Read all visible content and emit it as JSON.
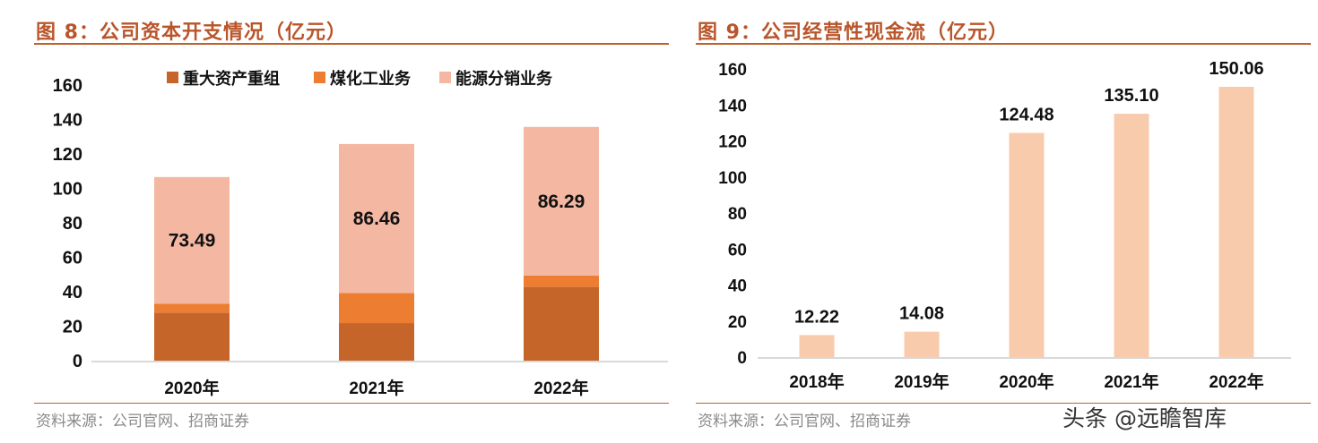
{
  "left": {
    "title": "图 8：公司资本开支情况（亿元）",
    "source": "资料来源：公司官网、招商证券"
  },
  "right": {
    "title": "图 9：公司经营性现金流（亿元）",
    "source": "资料来源：公司官网、招商证券"
  },
  "watermark": "头条 @远瞻智库",
  "chart_data": [
    {
      "type": "bar",
      "stacked": true,
      "title": "图 8：公司资本开支情况（亿元）",
      "categories": [
        "2020年",
        "2021年",
        "2022年"
      ],
      "series": [
        {
          "name": "重大资产重组",
          "color": "#c5652a",
          "values": [
            27.9,
            21.8,
            42.8
          ]
        },
        {
          "name": "煤化工业务",
          "color": "#ed7d31",
          "values": [
            5.2,
            17.5,
            6.6
          ]
        },
        {
          "name": "能源分销业务",
          "color": "#f4b8a2",
          "values": [
            73.49,
            86.46,
            86.29
          ],
          "labels": [
            "73.49",
            "86.46",
            "86.29"
          ]
        }
      ],
      "yticks": [
        0,
        20,
        40,
        60,
        80,
        100,
        120,
        140,
        160
      ],
      "ylim": [
        0,
        160
      ],
      "legend": "top",
      "grid": false
    },
    {
      "type": "bar",
      "title": "图 9：公司经营性现金流（亿元）",
      "categories": [
        "2018年",
        "2019年",
        "2020年",
        "2021年",
        "2022年"
      ],
      "values": [
        12.22,
        14.08,
        124.48,
        135.1,
        150.06
      ],
      "labels": [
        "12.22",
        "14.08",
        "124.48",
        "135.10",
        "150.06"
      ],
      "color": "#f8cbad",
      "yticks": [
        0,
        20,
        40,
        60,
        80,
        100,
        120,
        140,
        160
      ],
      "ylim": [
        0,
        160
      ],
      "grid": false
    }
  ]
}
